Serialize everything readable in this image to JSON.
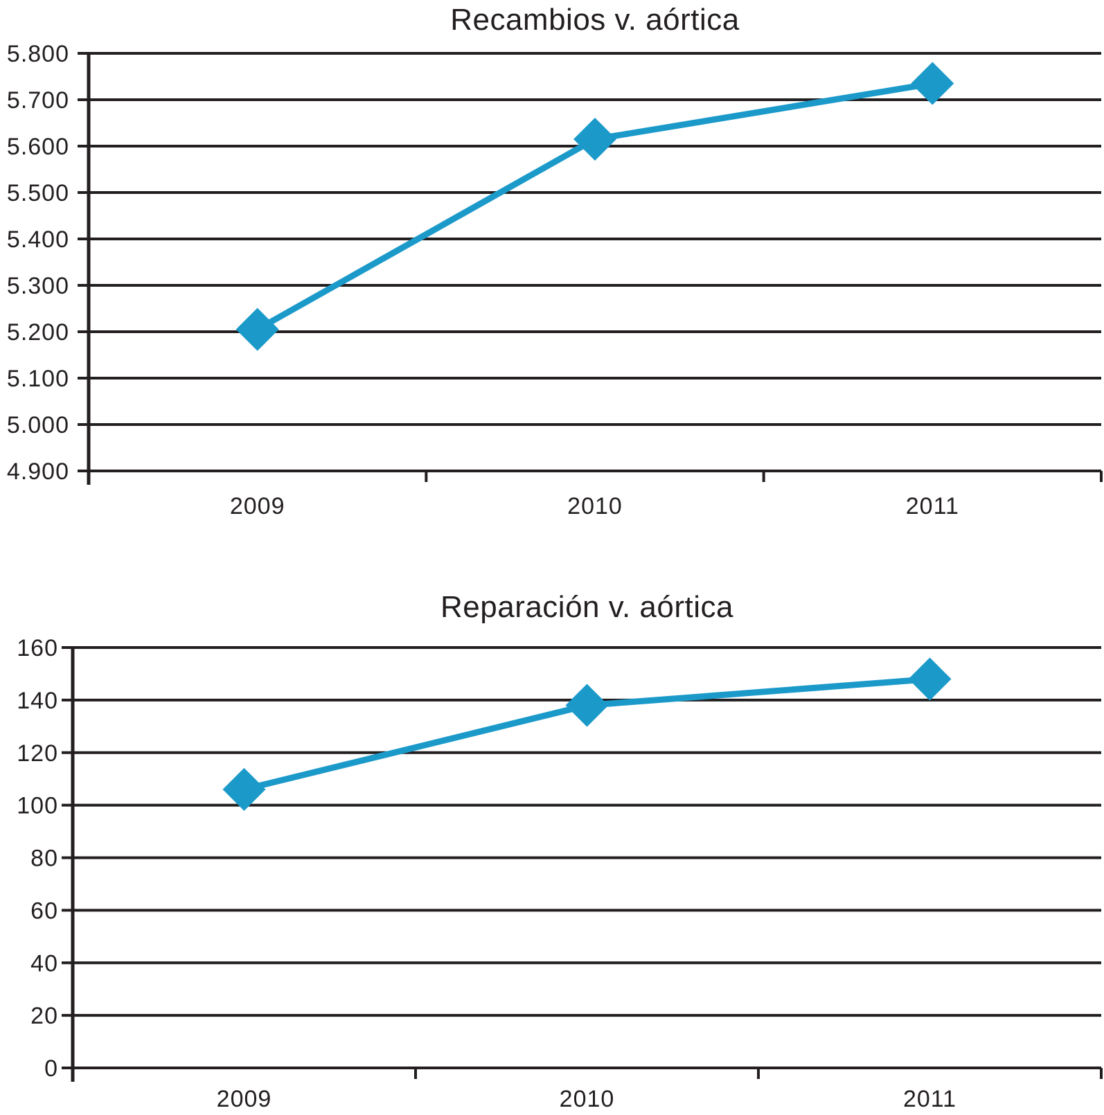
{
  "figure": {
    "background": "#ffffff"
  },
  "chart_data": [
    {
      "type": "line",
      "title": "Recambios v. aórtica",
      "categories": [
        "2009",
        "2010",
        "2011"
      ],
      "series": [
        {
          "name": "Recambios v. aórtica",
          "values": [
            5205,
            5615,
            5735
          ]
        }
      ],
      "xlabel": "",
      "ylabel": "",
      "ylim": [
        4900,
        5800
      ],
      "ytick_step": 100,
      "ytick_labels": [
        "4.900",
        "5.000",
        "5.100",
        "5.200",
        "5.300",
        "5.400",
        "5.500",
        "5.600",
        "5.700",
        "5.800"
      ],
      "grid": true,
      "legend": "none",
      "marker": "diamond",
      "xtick_style": "between-categories",
      "line_color": "#1b9aca",
      "grid_color": "#231f20",
      "text_color": "#231f20"
    },
    {
      "type": "line",
      "title": "Reparación v. aórtica",
      "categories": [
        "2009",
        "2010",
        "2011"
      ],
      "series": [
        {
          "name": "Reparación v. aórtica",
          "values": [
            106,
            138,
            148
          ]
        }
      ],
      "xlabel": "",
      "ylabel": "",
      "ylim": [
        0,
        160
      ],
      "ytick_step": 20,
      "ytick_labels": [
        "0",
        "20",
        "40",
        "60",
        "80",
        "100",
        "120",
        "140",
        "160"
      ],
      "grid": true,
      "legend": "none",
      "marker": "diamond",
      "xtick_style": "between-categories",
      "line_color": "#1b9aca",
      "grid_color": "#231f20",
      "text_color": "#231f20"
    }
  ]
}
